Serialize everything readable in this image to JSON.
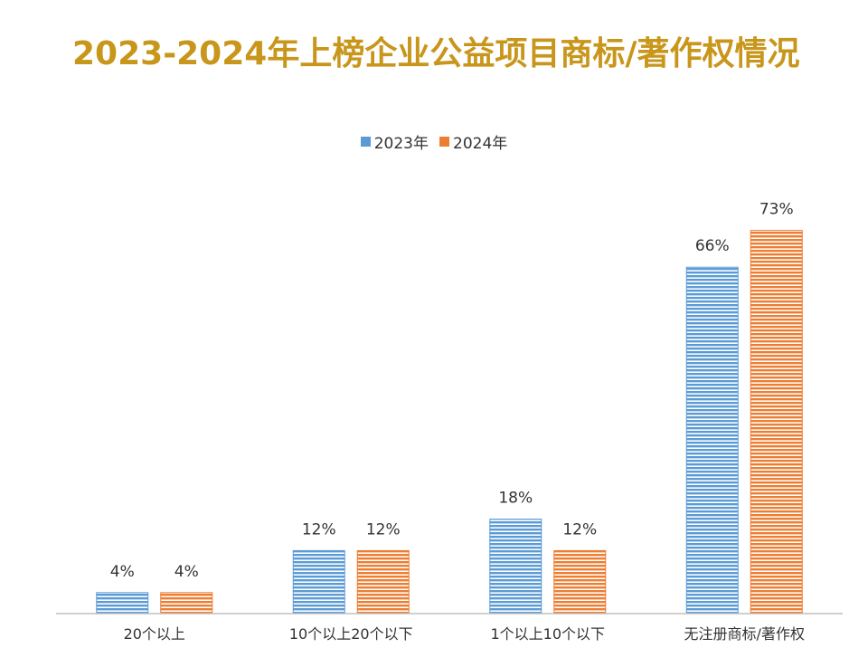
{
  "chart_data": {
    "type": "bar",
    "title": "2023-2024年上榜企业公益项目商标/著作权情况",
    "categories": [
      "20个以上",
      "10个以上20个以下",
      "1个以上10个以下",
      "无注册商标/著作权"
    ],
    "series": [
      {
        "name": "2023年",
        "values": [
          4,
          12,
          18,
          66
        ],
        "labels": [
          "4%",
          "12%",
          "18%",
          "66%"
        ],
        "color": "#5b9bd5"
      },
      {
        "name": "2024年",
        "values": [
          4,
          12,
          12,
          73
        ],
        "labels": [
          "4%",
          "12%",
          "12%",
          "73%"
        ],
        "color": "#ed7d31"
      }
    ],
    "xlabel": "",
    "ylabel": "",
    "ylim": [
      0,
      80
    ],
    "unit": "%",
    "grid": false,
    "legend_position": "top-center",
    "bar_pattern": "horizontal-stripes"
  }
}
